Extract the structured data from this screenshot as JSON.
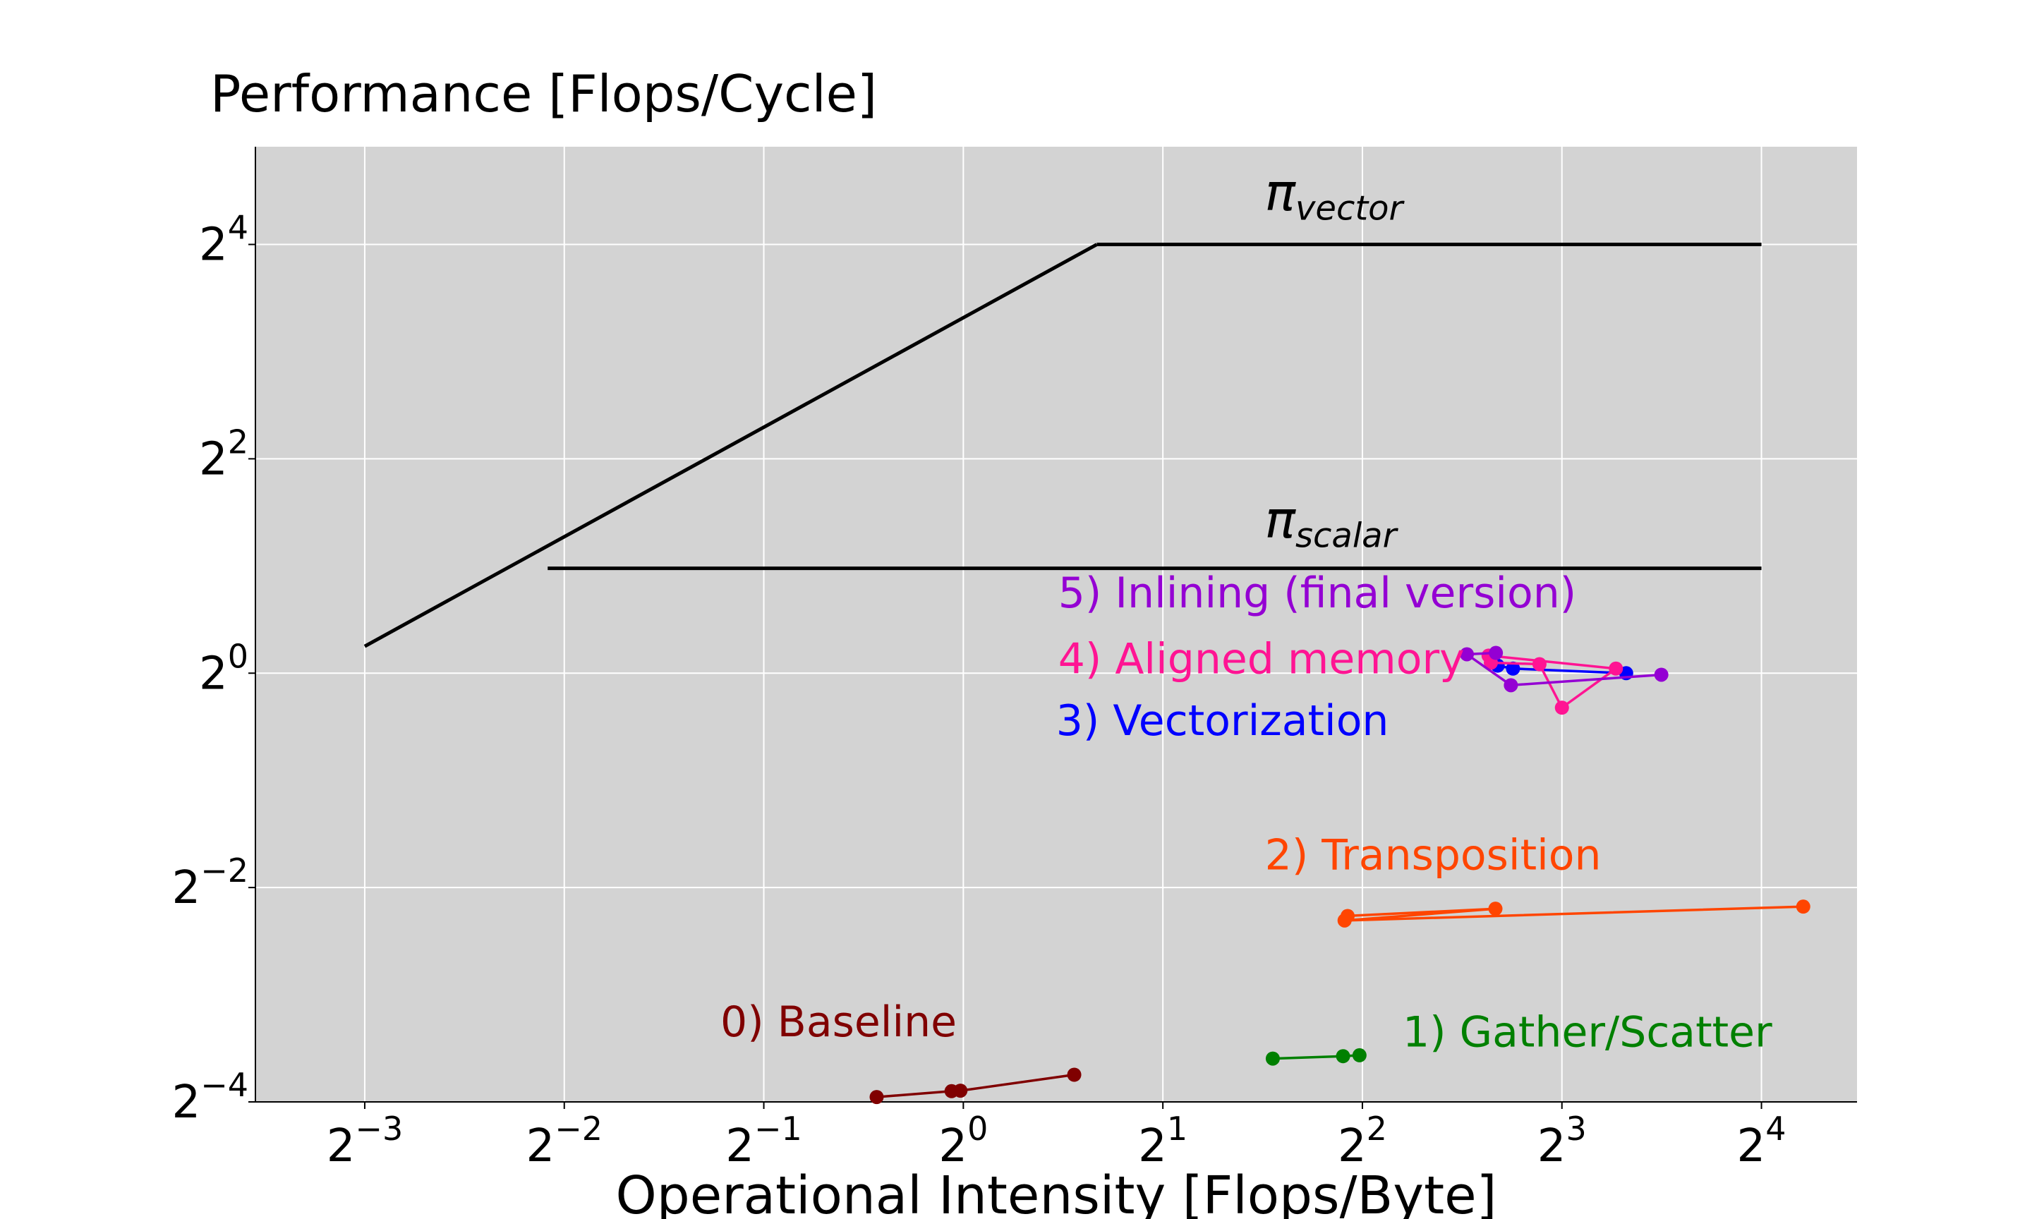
{
  "chart_data": {
    "type": "line",
    "title": "Performance [Flops/Cycle]",
    "xlabel": "Operational Intensity [Flops/Byte]",
    "ylabel": "",
    "xscale": "log2",
    "yscale": "log2",
    "xlim": [
      0.0855,
      22.3
    ],
    "ylim": [
      0.0625,
      30.1
    ],
    "grid": true,
    "x_ticks": [
      {
        "value": 0.125,
        "base": "2",
        "exp": "−3"
      },
      {
        "value": 0.25,
        "base": "2",
        "exp": "−2"
      },
      {
        "value": 0.5,
        "base": "2",
        "exp": "−1"
      },
      {
        "value": 1,
        "base": "2",
        "exp": "0"
      },
      {
        "value": 2,
        "base": "2",
        "exp": "1"
      },
      {
        "value": 4,
        "base": "2",
        "exp": "2"
      },
      {
        "value": 8,
        "base": "2",
        "exp": "3"
      },
      {
        "value": 16,
        "base": "2",
        "exp": "4"
      }
    ],
    "y_ticks": [
      {
        "value": 0.0625,
        "base": "2",
        "exp": "−4"
      },
      {
        "value": 0.25,
        "base": "2",
        "exp": "−2"
      },
      {
        "value": 1,
        "base": "2",
        "exp": "0"
      },
      {
        "value": 4,
        "base": "2",
        "exp": "2"
      },
      {
        "value": 16,
        "base": "2",
        "exp": "4"
      }
    ],
    "roofline": {
      "color": "#000000",
      "points": [
        [
          0.125,
          1.19
        ],
        [
          16,
          16
        ]
      ],
      "bandwidth_slope_end": [
        1.59,
        16
      ],
      "scalar_line": {
        "y": 1.97,
        "x": [
          0.236,
          16
        ]
      },
      "vector_line": {
        "y": 16,
        "x": [
          1.59,
          16
        ]
      },
      "labels": [
        {
          "id": "vector",
          "pi": "π",
          "sub": "vector",
          "x": 2.85,
          "y": 20.0
        },
        {
          "id": "scalar",
          "pi": "π",
          "sub": "scalar",
          "x": 2.85,
          "y": 2.41
        }
      ]
    },
    "series": [
      {
        "name": "0) Baseline",
        "color": "#800000",
        "points": [
          [
            0.74,
            0.0645
          ],
          [
            0.96,
            0.067
          ],
          [
            0.99,
            0.0672
          ],
          [
            1.47,
            0.0745
          ]
        ],
        "label_pos": [
          0.43,
          0.0955
        ]
      },
      {
        "name": "1) Gather/Scatter",
        "color": "#008000",
        "points": [
          [
            2.93,
            0.0827
          ],
          [
            3.74,
            0.084
          ],
          [
            3.96,
            0.0845
          ]
        ],
        "label_pos": [
          4.6,
          0.0895
        ]
      },
      {
        "name": "2) Transposition",
        "color": "#ff4500",
        "points": [
          [
            3.8,
            0.208
          ],
          [
            6.35,
            0.218
          ],
          [
            3.76,
            0.202
          ],
          [
            18.5,
            0.221
          ]
        ],
        "label_pos": [
          2.85,
          0.281
        ]
      },
      {
        "name": "3) Vectorization",
        "color": "#0000ff",
        "points": [
          [
            6.4,
            1.05
          ],
          [
            6.75,
            1.03
          ],
          [
            10.0,
            1.0
          ]
        ],
        "label_pos": [
          1.38,
          0.67
        ]
      },
      {
        "name": "4) Aligned memory",
        "color": "#ff1493",
        "points": [
          [
            6.25,
            1.07
          ],
          [
            7.4,
            1.06
          ],
          [
            8.0,
            0.8
          ],
          [
            9.65,
            1.03
          ],
          [
            6.2,
            1.12
          ]
        ],
        "label_pos": [
          1.39,
          1.0
        ]
      },
      {
        "name": "5) Inlining (final version)",
        "color": "#9400d3",
        "points": [
          [
            6.36,
            1.14
          ],
          [
            5.75,
            1.13
          ],
          [
            6.7,
            0.925
          ],
          [
            11.3,
            0.99
          ]
        ],
        "label_pos": [
          1.39,
          1.53
        ]
      }
    ]
  }
}
